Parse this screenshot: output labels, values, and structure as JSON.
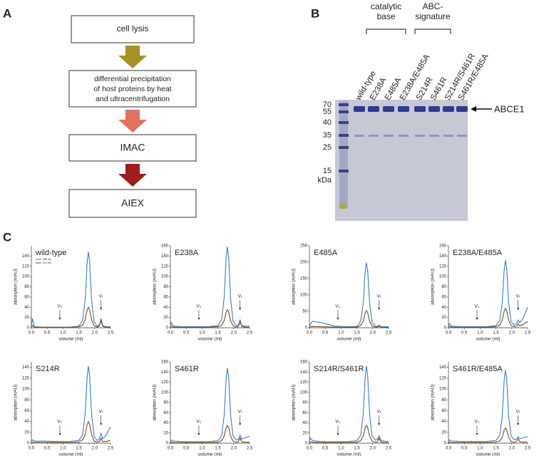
{
  "panels": {
    "a": "A",
    "b": "B",
    "c": "C"
  },
  "flowchart": {
    "steps": [
      [
        "cell lysis"
      ],
      [
        "differential precipitation",
        "of host proteins by heat",
        "and ultracentrifugation"
      ],
      [
        "IMAC"
      ],
      [
        "AIEX"
      ]
    ]
  },
  "gel": {
    "lanes": [
      "wild-type",
      "E238A",
      "E485A",
      "E238A/E485A",
      "S214R",
      "S461R",
      "S214R/S461R",
      "S461R/E485A"
    ],
    "groups": [
      [
        "catalytic",
        "base"
      ],
      [
        "ABC-",
        "signature"
      ]
    ],
    "markers": [
      "70",
      "55",
      "40",
      "35",
      "25",
      "15"
    ],
    "unit": "kDa",
    "band_label": "ABCE1"
  },
  "chart_data": [
    {
      "type": "line",
      "title": "wild-type",
      "xlabel": "volume (ml)",
      "ylabel": "absorption (mAU)",
      "x": [
        0,
        0.03,
        0.1,
        0.4,
        0.8,
        1.2,
        1.5,
        1.62,
        1.7,
        1.76,
        1.8,
        1.84,
        1.9,
        1.98,
        2.08,
        2.15,
        2.2,
        2.25,
        2.35,
        2.5
      ],
      "series": [
        {
          "name": "280 nm",
          "color": "#3a7cc4",
          "values": [
            3,
            18,
            2,
            1,
            1,
            1,
            3,
            15,
            55,
            125,
            148,
            130,
            55,
            12,
            3,
            6,
            18,
            4,
            2,
            2
          ]
        },
        {
          "name": "410 nm",
          "color": "#7a4a1e",
          "values": [
            1,
            5,
            1,
            1,
            1,
            1,
            2,
            5,
            16,
            34,
            40,
            35,
            16,
            4,
            1,
            4,
            14,
            3,
            1,
            1
          ]
        }
      ],
      "xlim": [
        0,
        2.5
      ],
      "ylim": [
        0,
        160
      ],
      "xticks": [
        {
          "value": 0,
          "label": "0.0"
        },
        0.5,
        {
          "value": 1,
          "label": "1.0"
        },
        1.5,
        {
          "value": 2,
          "label": "2.0"
        },
        2.5
      ],
      "yticks": [
        0,
        20,
        40,
        60,
        80,
        100,
        120,
        140
      ],
      "annotations": [
        {
          "text": "V₀",
          "x": 0.9
        },
        {
          "text": "Vₜ",
          "x": 2.2
        }
      ]
    },
    {
      "type": "line",
      "title": "E238A",
      "xlabel": "volume (ml)",
      "ylabel": "absorption (mAU)",
      "x": [
        0,
        0.03,
        0.1,
        0.4,
        0.8,
        1.2,
        1.5,
        1.62,
        1.7,
        1.76,
        1.8,
        1.84,
        1.9,
        1.98,
        2.08,
        2.15,
        2.2,
        2.25,
        2.35,
        2.5
      ],
      "series": [
        {
          "color": "#3a7cc4",
          "values": [
            3,
            10,
            3,
            2,
            2,
            2,
            4,
            16,
            60,
            135,
            158,
            138,
            58,
            13,
            4,
            6,
            15,
            4,
            3,
            3
          ]
        },
        {
          "color": "#7a4a1e",
          "values": [
            1,
            3,
            1,
            1,
            1,
            1,
            2,
            5,
            14,
            30,
            35,
            31,
            14,
            4,
            1,
            3,
            12,
            3,
            1,
            1
          ]
        }
      ],
      "xlim": [
        0,
        2.5
      ],
      "ylim": [
        0,
        160
      ],
      "xticks": [
        {
          "value": 0,
          "label": "0.0"
        },
        0.5,
        {
          "value": 1,
          "label": "1.0"
        },
        1.5,
        {
          "value": 2,
          "label": "2.0"
        },
        2.5
      ],
      "yticks": [
        0,
        20,
        40,
        60,
        80,
        100,
        120,
        140,
        160
      ],
      "annotations": [
        {
          "text": "V₀",
          "x": 0.9
        },
        {
          "text": "Vₜ",
          "x": 2.2
        }
      ]
    },
    {
      "type": "line",
      "title": "E485A",
      "xlabel": "volume (ml)",
      "ylabel": "absorption (mAU)",
      "x": [
        0,
        0.03,
        0.1,
        0.4,
        0.8,
        1.2,
        1.5,
        1.62,
        1.7,
        1.76,
        1.8,
        1.84,
        1.9,
        1.98,
        2.08,
        2.15,
        2.2,
        2.25,
        2.35,
        2.5
      ],
      "series": [
        {
          "color": "#3a7cc4",
          "values": [
            5,
            12,
            20,
            15,
            5,
            3,
            4,
            20,
            75,
            170,
            198,
            175,
            75,
            16,
            5,
            4,
            8,
            4,
            3,
            3
          ]
        },
        {
          "color": "#7a4a1e",
          "values": [
            1,
            3,
            4,
            3,
            2,
            1,
            2,
            7,
            20,
            44,
            52,
            46,
            20,
            5,
            2,
            2,
            5,
            2,
            1,
            1
          ]
        }
      ],
      "xlim": [
        0,
        2.5
      ],
      "ylim": [
        0,
        250
      ],
      "xticks": [
        {
          "value": 0,
          "label": "0.0"
        },
        0.5,
        {
          "value": 1,
          "label": "1.0"
        },
        1.5,
        {
          "value": 2,
          "label": "2.0"
        },
        2.5
      ],
      "yticks": [
        0,
        50,
        100,
        150,
        200,
        250
      ],
      "annotations": [
        {
          "text": "V₀",
          "x": 0.9
        },
        {
          "text": "Vₜ",
          "x": 2.2
        }
      ]
    },
    {
      "type": "line",
      "title": "E238A/E485A",
      "xlabel": "volume (ml)",
      "ylabel": "absorption (mAU)",
      "x": [
        0,
        0.03,
        0.1,
        0.4,
        0.8,
        1.2,
        1.5,
        1.62,
        1.7,
        1.76,
        1.8,
        1.84,
        1.9,
        1.98,
        2.08,
        2.15,
        2.2,
        2.25,
        2.35,
        2.5
      ],
      "series": [
        {
          "color": "#3a7cc4",
          "values": [
            3,
            8,
            3,
            2,
            2,
            2,
            4,
            14,
            50,
            112,
            132,
            116,
            50,
            12,
            5,
            8,
            15,
            10,
            18,
            40
          ]
        },
        {
          "color": "#7a4a1e",
          "values": [
            1,
            3,
            1,
            1,
            1,
            1,
            2,
            5,
            15,
            32,
            38,
            33,
            15,
            4,
            2,
            3,
            8,
            4,
            6,
            12
          ]
        }
      ],
      "xlim": [
        0,
        2.5
      ],
      "ylim": [
        0,
        160
      ],
      "xticks": [
        {
          "value": 0,
          "label": "0.0"
        },
        0.5,
        {
          "value": 1,
          "label": "1.0"
        },
        1.5,
        {
          "value": 2,
          "label": "2.0"
        },
        2.5
      ],
      "yticks": [
        0,
        20,
        40,
        60,
        80,
        100,
        120,
        140,
        160
      ],
      "annotations": [
        {
          "text": "V₀",
          "x": 0.9
        },
        {
          "text": "Vₜ",
          "x": 2.2
        }
      ]
    },
    {
      "type": "line",
      "title": "S214R",
      "xlabel": "volume (ml)",
      "ylabel": "absorption (mAU)",
      "x": [
        0,
        0.03,
        0.1,
        0.4,
        0.8,
        1.2,
        1.5,
        1.62,
        1.7,
        1.76,
        1.8,
        1.84,
        1.9,
        1.98,
        2.08,
        2.15,
        2.2,
        2.25,
        2.35,
        2.5
      ],
      "series": [
        {
          "color": "#3a7cc4",
          "values": [
            3,
            6,
            4,
            4,
            3,
            3,
            5,
            15,
            55,
            120,
            142,
            125,
            55,
            13,
            5,
            8,
            18,
            8,
            14,
            30
          ]
        },
        {
          "color": "#7a4a1e",
          "values": [
            1,
            2,
            2,
            2,
            1,
            1,
            2,
            6,
            16,
            34,
            40,
            35,
            16,
            4,
            2,
            3,
            9,
            3,
            3,
            5
          ]
        }
      ],
      "xlim": [
        0,
        2.5
      ],
      "ylim": [
        0,
        150
      ],
      "xticks": [
        {
          "value": 0,
          "label": "0.0"
        },
        0.5,
        {
          "value": 1,
          "label": "1.0"
        },
        1.5,
        {
          "value": 2,
          "label": "2.0"
        },
        2.5
      ],
      "yticks": [
        0,
        20,
        40,
        60,
        80,
        100,
        120,
        140
      ],
      "annotations": [
        {
          "text": "V₀",
          "x": 0.9
        },
        {
          "text": "Vₜ",
          "x": 2.2
        }
      ]
    },
    {
      "type": "line",
      "title": "S461R",
      "xlabel": "volume (ml)",
      "ylabel": "absorption (mAU)",
      "x": [
        0,
        0.03,
        0.1,
        0.4,
        0.8,
        1.2,
        1.5,
        1.62,
        1.7,
        1.76,
        1.8,
        1.84,
        1.9,
        1.98,
        2.08,
        2.15,
        2.2,
        2.25,
        2.35,
        2.5
      ],
      "series": [
        {
          "color": "#3a7cc4",
          "values": [
            3,
            6,
            4,
            3,
            3,
            3,
            5,
            15,
            55,
            125,
            148,
            130,
            55,
            14,
            6,
            8,
            16,
            8,
            10,
            14
          ]
        },
        {
          "color": "#7a4a1e",
          "values": [
            1,
            2,
            1,
            1,
            1,
            1,
            2,
            5,
            14,
            30,
            35,
            31,
            14,
            4,
            2,
            3,
            10,
            3,
            2,
            2
          ]
        }
      ],
      "xlim": [
        0,
        2.5
      ],
      "ylim": [
        0,
        160
      ],
      "xticks": [
        {
          "value": 0,
          "label": "0.0"
        },
        0.5,
        {
          "value": 1,
          "label": "1.0"
        },
        1.5,
        {
          "value": 2,
          "label": "2.0"
        },
        2.5
      ],
      "yticks": [
        0,
        20,
        40,
        60,
        80,
        100,
        120,
        140,
        160
      ],
      "annotations": [
        {
          "text": "V₀",
          "x": 0.9
        },
        {
          "text": "Vₜ",
          "x": 2.2
        }
      ]
    },
    {
      "type": "line",
      "title": "S214R/S461R",
      "xlabel": "volume (ml)",
      "ylabel": "absorption (mAU)",
      "x": [
        0,
        0.03,
        0.1,
        0.4,
        0.8,
        1.2,
        1.5,
        1.62,
        1.7,
        1.76,
        1.8,
        1.84,
        1.9,
        1.98,
        2.08,
        2.15,
        2.2,
        2.25,
        2.35,
        2.5
      ],
      "series": [
        {
          "color": "#3a7cc4",
          "values": [
            3,
            10,
            5,
            3,
            3,
            3,
            5,
            15,
            58,
            128,
            152,
            133,
            57,
            14,
            6,
            8,
            14,
            6,
            4,
            3
          ]
        },
        {
          "color": "#7a4a1e",
          "values": [
            1,
            3,
            2,
            1,
            1,
            1,
            2,
            5,
            14,
            30,
            35,
            31,
            14,
            4,
            2,
            3,
            10,
            3,
            1,
            1
          ]
        }
      ],
      "xlim": [
        0,
        2.5
      ],
      "ylim": [
        0,
        160
      ],
      "xticks": [
        {
          "value": 0,
          "label": "0.0"
        },
        0.5,
        {
          "value": 1,
          "label": "1.0"
        },
        1.5,
        {
          "value": 2,
          "label": "2.0"
        },
        2.5
      ],
      "yticks": [
        0,
        20,
        40,
        60,
        80,
        100,
        120,
        140,
        160
      ],
      "annotations": [
        {
          "text": "V₀",
          "x": 0.9
        },
        {
          "text": "Vₜ",
          "x": 2.2
        }
      ]
    },
    {
      "type": "line",
      "title": "S461R/E485A",
      "xlabel": "volume (ml)",
      "ylabel": "absorption (mAU)",
      "x": [
        0,
        0.03,
        0.1,
        0.4,
        0.8,
        1.2,
        1.5,
        1.62,
        1.7,
        1.76,
        1.8,
        1.84,
        1.9,
        1.98,
        2.08,
        2.15,
        2.2,
        2.25,
        2.35,
        2.5
      ],
      "series": [
        {
          "color": "#3a7cc4",
          "values": [
            3,
            6,
            4,
            3,
            3,
            3,
            5,
            14,
            50,
            115,
            135,
            118,
            50,
            13,
            6,
            8,
            12,
            8,
            10,
            12
          ]
        },
        {
          "color": "#7a4a1e",
          "values": [
            1,
            2,
            1,
            1,
            1,
            1,
            2,
            4,
            11,
            24,
            28,
            25,
            11,
            3,
            2,
            3,
            8,
            3,
            2,
            2
          ]
        }
      ],
      "xlim": [
        0,
        2.5
      ],
      "ylim": [
        0,
        150
      ],
      "xticks": [
        {
          "value": 0,
          "label": "0.0"
        },
        0.5,
        {
          "value": 1,
          "label": "1.0"
        },
        1.5,
        {
          "value": 2,
          "label": "2.0"
        },
        2.5
      ],
      "yticks": [
        0,
        20,
        40,
        60,
        80,
        100,
        120,
        140
      ],
      "annotations": [
        {
          "text": "V₀",
          "x": 0.9
        },
        {
          "text": "Vₜ",
          "x": 2.2
        }
      ]
    }
  ]
}
